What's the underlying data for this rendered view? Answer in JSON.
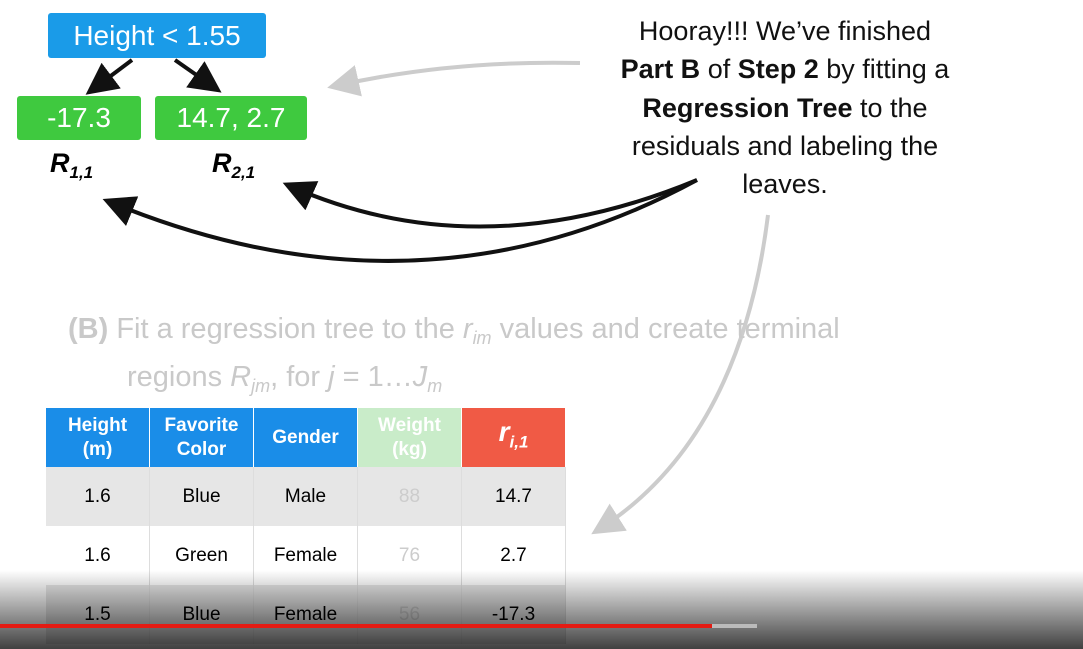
{
  "tree": {
    "root": "Height < 1.55",
    "leaves": [
      "-17.3",
      "14.7, 2.7"
    ],
    "regions": [
      {
        "symbol": "R",
        "subscript": "1,1"
      },
      {
        "symbol": "R",
        "subscript": "2,1"
      }
    ]
  },
  "callout": {
    "lines": [
      [
        {
          "text": "Hooray!!! We’ve finished"
        }
      ],
      [
        {
          "text": "Part B",
          "style": "bold"
        },
        {
          "text": " of "
        },
        {
          "text": "Step 2",
          "style": "bold"
        },
        {
          "text": " by fitting a"
        }
      ],
      [
        {
          "text": "Regression Tree",
          "style": "bold"
        },
        {
          "text": " to the"
        }
      ],
      [
        {
          "text": "residuals and labeling the"
        }
      ],
      [
        {
          "text": "leaves."
        }
      ]
    ]
  },
  "step": {
    "lines": [
      [
        {
          "text": "(B)",
          "style": "bold"
        },
        {
          "text": " Fit a regression tree to the "
        },
        {
          "text": "r",
          "style": "italic"
        },
        {
          "text": "im",
          "style": "sub"
        },
        {
          "text": " values and create terminal"
        }
      ],
      [
        {
          "text": "regions "
        },
        {
          "text": "R",
          "style": "italic"
        },
        {
          "text": "jm",
          "style": "sub"
        },
        {
          "text": ", for "
        },
        {
          "text": "j",
          "style": "italic"
        },
        {
          "text": " = 1…"
        },
        {
          "text": "J",
          "style": "italic"
        },
        {
          "text": "m",
          "style": "sub"
        }
      ]
    ]
  },
  "table": {
    "columns": [
      {
        "label": "Height\n(m)"
      },
      {
        "label": "Favorite\nColor"
      },
      {
        "label": "Gender"
      },
      {
        "label": "Weight\n(kg)"
      },
      {
        "label": "r",
        "subscript": "i,1"
      }
    ],
    "rows": [
      [
        "1.6",
        "Blue",
        "Male",
        "88",
        "14.7"
      ],
      [
        "1.6",
        "Green",
        "Female",
        "76",
        "2.7"
      ],
      [
        "1.5",
        "Blue",
        "Female",
        "56",
        "-17.3"
      ]
    ]
  }
}
